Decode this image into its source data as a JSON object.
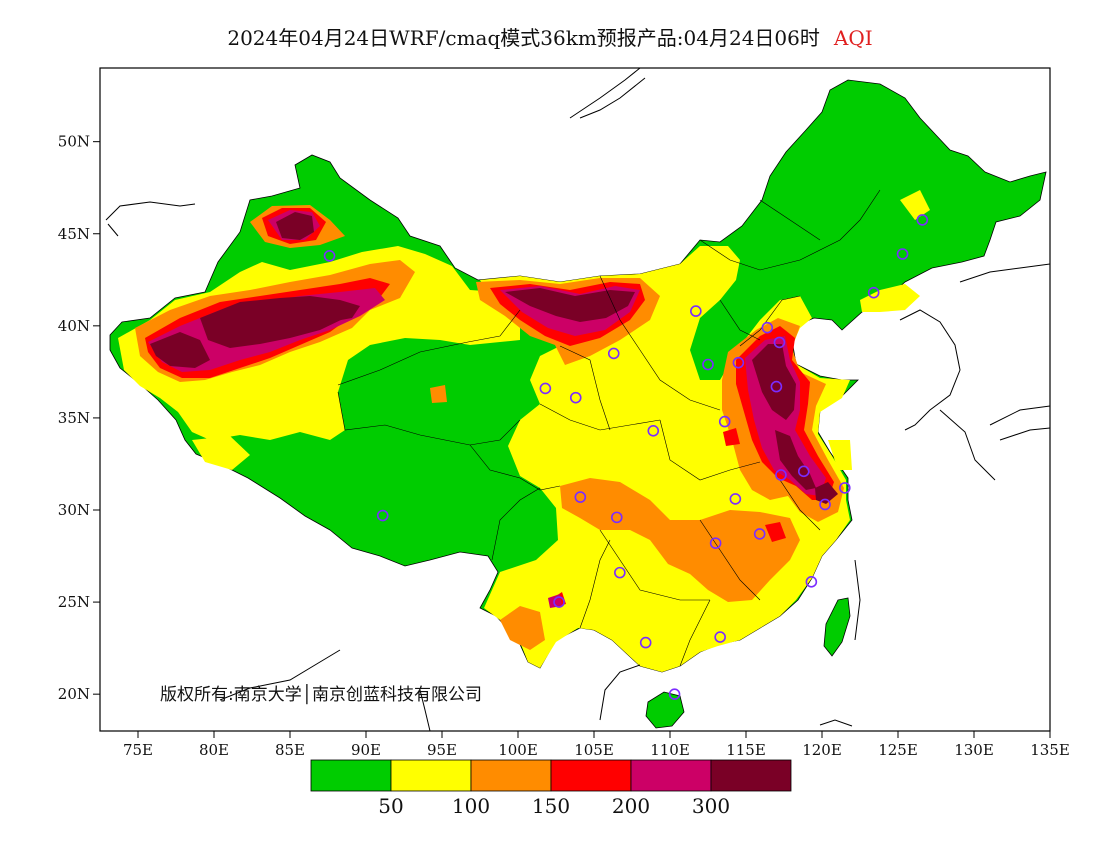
{
  "title": {
    "main": "2024年04月24日WRF/cmaq模式36km预报产品:04月24日06时",
    "metric": "AQI"
  },
  "copyright": "版权所有:南京大学│南京创蓝科技有限公司",
  "axes": {
    "x_ticks": [
      "75E",
      "80E",
      "85E",
      "90E",
      "95E",
      "100E",
      "105E",
      "110E",
      "115E",
      "120E",
      "125E",
      "130E",
      "135E"
    ],
    "y_ticks": [
      "50N",
      "45N",
      "40N",
      "35N",
      "30N",
      "25N",
      "20N"
    ]
  },
  "legend": {
    "colors": [
      "#00cc00",
      "#ffff00",
      "#ff8c00",
      "#ff0000",
      "#cc0066",
      "#7a0026"
    ],
    "labels": [
      "50",
      "100",
      "150",
      "200",
      "300"
    ]
  },
  "colors": {
    "good": "#00cc00",
    "moderate": "#ffff00",
    "sensitive": "#ff8c00",
    "unhealthy": "#ff0000",
    "very_unhealthy": "#cc0066",
    "hazardous": "#7a0026",
    "station_marker": "#7b2cff"
  },
  "stations": [
    {
      "lon": 126.6,
      "lat": 45.75
    },
    {
      "lon": 125.3,
      "lat": 43.9
    },
    {
      "lon": 123.4,
      "lat": 41.8
    },
    {
      "lon": 116.4,
      "lat": 39.9
    },
    {
      "lon": 117.2,
      "lat": 39.1
    },
    {
      "lon": 114.5,
      "lat": 38.0
    },
    {
      "lon": 112.5,
      "lat": 37.9
    },
    {
      "lon": 111.7,
      "lat": 40.8
    },
    {
      "lon": 106.3,
      "lat": 38.5
    },
    {
      "lon": 103.8,
      "lat": 36.1
    },
    {
      "lon": 101.8,
      "lat": 36.6
    },
    {
      "lon": 108.9,
      "lat": 34.3
    },
    {
      "lon": 113.6,
      "lat": 34.8
    },
    {
      "lon": 117.0,
      "lat": 36.7
    },
    {
      "lon": 117.3,
      "lat": 31.9
    },
    {
      "lon": 118.8,
      "lat": 32.1
    },
    {
      "lon": 121.5,
      "lat": 31.2
    },
    {
      "lon": 120.2,
      "lat": 30.3
    },
    {
      "lon": 114.3,
      "lat": 30.6
    },
    {
      "lon": 115.9,
      "lat": 28.7
    },
    {
      "lon": 113.0,
      "lat": 28.2
    },
    {
      "lon": 106.5,
      "lat": 29.6
    },
    {
      "lon": 104.1,
      "lat": 30.7
    },
    {
      "lon": 106.7,
      "lat": 26.6
    },
    {
      "lon": 102.7,
      "lat": 25.0
    },
    {
      "lon": 108.4,
      "lat": 22.8
    },
    {
      "lon": 113.3,
      "lat": 23.1
    },
    {
      "lon": 119.3,
      "lat": 26.1
    },
    {
      "lon": 110.3,
      "lat": 20.0
    },
    {
      "lon": 91.1,
      "lat": 29.7
    },
    {
      "lon": 87.6,
      "lat": 43.8
    }
  ]
}
